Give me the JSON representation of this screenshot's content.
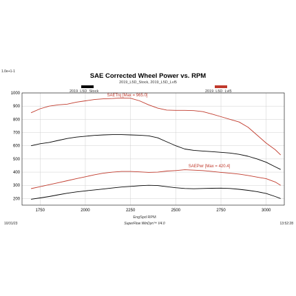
{
  "corner_mark": "1.0e+1-1",
  "chart_data": {
    "type": "line",
    "title": "SAE Corrected Wheel Power vs. RPM",
    "subtitle": "2019_L5D_Stock, 2019_L5D_Lvl5",
    "xlabel": "EngSpd RPM",
    "ylabel": "",
    "xlim": [
      1650,
      3100
    ],
    "ylim": [
      150,
      1000
    ],
    "x_ticks": [
      1750,
      2000,
      2250,
      2500,
      2750,
      3000
    ],
    "y_ticks": [
      200,
      300,
      400,
      500,
      600,
      700,
      800,
      900,
      1000
    ],
    "grid": true,
    "legend": [
      {
        "name": "2019_L5D_Stock",
        "color": "#000000",
        "position": "top-left"
      },
      {
        "name": "2019_L5D_Lvl5",
        "color": "#c0392b",
        "position": "top-right"
      }
    ],
    "annotations": [
      {
        "text": "SAETrq [Max = 965.0]",
        "x": 2120,
        "y": 975,
        "color": "#c0392b"
      },
      {
        "text": "SAEPwr [Max = 420.4]",
        "x": 2570,
        "y": 438,
        "color": "#c0392b"
      }
    ],
    "series": [
      {
        "name": "2019_L5D_Lvl5",
        "measure": "SAETrq",
        "color": "#c0392b",
        "x": [
          1700,
          1750,
          1800,
          1850,
          1900,
          1950,
          2000,
          2050,
          2100,
          2150,
          2200,
          2250,
          2300,
          2350,
          2400,
          2450,
          2500,
          2550,
          2600,
          2650,
          2700,
          2750,
          2800,
          2850,
          2900,
          2950,
          3000,
          3050,
          3080
        ],
        "y": [
          850,
          880,
          900,
          910,
          915,
          930,
          940,
          950,
          955,
          958,
          962,
          960,
          940,
          910,
          885,
          870,
          868,
          868,
          866,
          858,
          840,
          820,
          800,
          780,
          740,
          680,
          620,
          570,
          530
        ]
      },
      {
        "name": "2019_L5D_Stock",
        "measure": "SAETrq",
        "color": "#000000",
        "x": [
          1700,
          1750,
          1800,
          1850,
          1900,
          1950,
          2000,
          2050,
          2100,
          2150,
          2200,
          2250,
          2300,
          2350,
          2400,
          2450,
          2500,
          2550,
          2600,
          2650,
          2700,
          2750,
          2800,
          2850,
          2900,
          2950,
          3000,
          3050,
          3080
        ],
        "y": [
          600,
          615,
          625,
          640,
          655,
          665,
          672,
          678,
          682,
          684,
          684,
          682,
          680,
          675,
          660,
          630,
          600,
          575,
          565,
          560,
          555,
          550,
          545,
          535,
          520,
          500,
          475,
          440,
          420
        ]
      },
      {
        "name": "2019_L5D_Lvl5",
        "measure": "SAEPwr",
        "color": "#c0392b",
        "x": [
          1700,
          1750,
          1800,
          1850,
          1900,
          1950,
          2000,
          2050,
          2100,
          2150,
          2200,
          2250,
          2300,
          2350,
          2400,
          2450,
          2500,
          2550,
          2600,
          2650,
          2700,
          2750,
          2800,
          2850,
          2900,
          2950,
          3000,
          3050,
          3080
        ],
        "y": [
          275,
          290,
          305,
          320,
          335,
          350,
          365,
          380,
          392,
          400,
          405,
          405,
          402,
          398,
          400,
          408,
          412,
          418,
          415,
          412,
          405,
          398,
          392,
          385,
          375,
          362,
          350,
          325,
          300
        ]
      },
      {
        "name": "2019_L5D_Stock",
        "measure": "SAEPwr",
        "color": "#000000",
        "x": [
          1700,
          1750,
          1800,
          1850,
          1900,
          1950,
          2000,
          2050,
          2100,
          2150,
          2200,
          2250,
          2300,
          2350,
          2400,
          2450,
          2500,
          2550,
          2600,
          2650,
          2700,
          2750,
          2800,
          2850,
          2900,
          2950,
          3000,
          3050,
          3080
        ],
        "y": [
          195,
          205,
          215,
          228,
          240,
          250,
          258,
          265,
          272,
          280,
          287,
          292,
          297,
          300,
          298,
          290,
          282,
          276,
          274,
          276,
          278,
          279,
          276,
          270,
          262,
          252,
          238,
          215,
          200
        ]
      }
    ]
  },
  "footer": {
    "date": "10/31/23",
    "software": "SuperFlow WinDyn™ V4.0",
    "time": "13:52:28"
  }
}
